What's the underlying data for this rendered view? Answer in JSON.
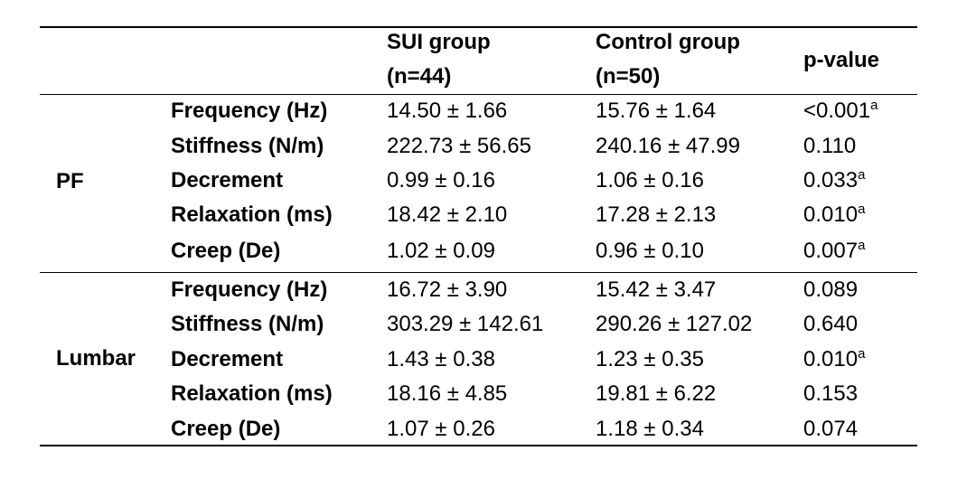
{
  "table": {
    "headers": {
      "group": "",
      "parameter": "",
      "sui_line1": "SUI group",
      "sui_line2": "(n=44)",
      "control_line1": "Control group",
      "control_line2": "(n=50)",
      "pvalue": "p-value"
    },
    "groups": [
      {
        "name": "PF",
        "rows": [
          {
            "parameter": "Frequency (Hz)",
            "sui": "14.50 ± 1.66",
            "control": "15.76 ± 1.64",
            "p": "<0.001",
            "sup": "a"
          },
          {
            "parameter": "Stiffness (N/m)",
            "sui": "222.73 ± 56.65",
            "control": "240.16 ± 47.99",
            "p": "0.110",
            "sup": ""
          },
          {
            "parameter": "Decrement",
            "sui": "0.99 ± 0.16",
            "control": "1.06 ± 0.16",
            "p": "0.033",
            "sup": "a"
          },
          {
            "parameter": "Relaxation (ms)",
            "sui": "18.42 ± 2.10",
            "control": "17.28 ± 2.13",
            "p": "0.010",
            "sup": "a"
          },
          {
            "parameter": "Creep (De)",
            "sui": "1.02 ± 0.09",
            "control": "0.96 ± 0.10",
            "p": "0.007",
            "sup": "a"
          }
        ]
      },
      {
        "name": "Lumbar",
        "rows": [
          {
            "parameter": "Frequency (Hz)",
            "sui": "16.72 ± 3.90",
            "control": "15.42 ± 3.47",
            "p": "0.089",
            "sup": ""
          },
          {
            "parameter": "Stiffness (N/m)",
            "sui": "303.29 ± 142.61",
            "control": "290.26 ± 127.02",
            "p": "0.640",
            "sup": ""
          },
          {
            "parameter": "Decrement",
            "sui": "1.43 ± 0.38",
            "control": "1.23 ± 0.35",
            "p": "0.010",
            "sup": "a"
          },
          {
            "parameter": "Relaxation (ms)",
            "sui": "18.16 ± 4.85",
            "control": "19.81 ± 6.22",
            "p": "0.153",
            "sup": ""
          },
          {
            "parameter": "Creep (De)",
            "sui": "1.07 ± 0.26",
            "control": "1.18 ± 0.34",
            "p": "0.074",
            "sup": ""
          }
        ]
      }
    ]
  }
}
